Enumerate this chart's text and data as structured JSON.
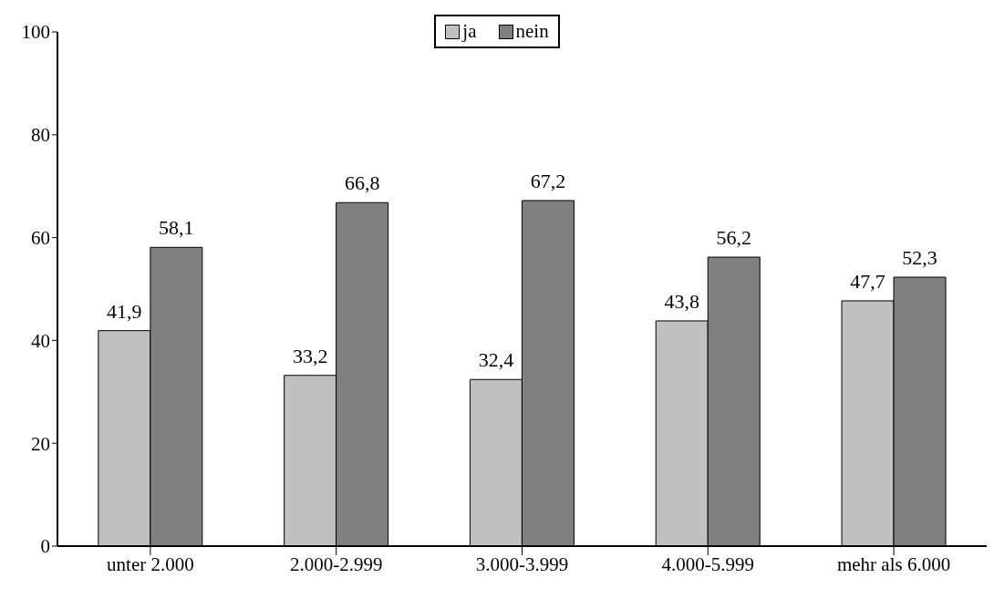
{
  "chart_data": {
    "type": "bar",
    "categories": [
      "unter 2.000",
      "2.000-2.999",
      "3.000-3.999",
      "4.000-5.999",
      "mehr als 6.000"
    ],
    "series": [
      {
        "name": "ja",
        "color": "#c0c0c0",
        "values": [
          41.9,
          33.2,
          32.4,
          43.8,
          47.7
        ],
        "value_labels": [
          "41,9",
          "33,2",
          "32,4",
          "43,8",
          "47,7"
        ]
      },
      {
        "name": "nein",
        "color": "#808080",
        "values": [
          58.1,
          66.8,
          67.2,
          56.2,
          52.3
        ],
        "value_labels": [
          "58,1",
          "66,8",
          "67,2",
          "56,2",
          "52,3"
        ]
      }
    ],
    "ylim": [
      0,
      100
    ],
    "yticks": [
      0,
      20,
      40,
      60,
      80,
      100
    ],
    "grid": false,
    "legend": "top"
  }
}
